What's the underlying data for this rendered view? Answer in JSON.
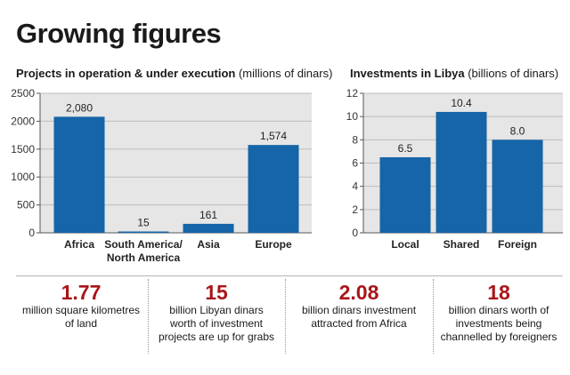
{
  "title": "Growing figures",
  "chart_data": [
    {
      "type": "bar",
      "title": "Projects in operation & under execution",
      "unit_note": "(millions of dinars)",
      "categories": [
        "Africa",
        "South America/\nNorth America",
        "Asia",
        "Europe"
      ],
      "values": [
        2080,
        15,
        161,
        1574
      ],
      "value_labels": [
        "2,080",
        "15",
        "161",
        "1,574"
      ],
      "yticks": [
        0,
        500,
        1000,
        1500,
        2000,
        2500
      ],
      "ylim": [
        0,
        2500
      ],
      "xlabel": "",
      "ylabel": "",
      "grid": true
    },
    {
      "type": "bar",
      "title": "Investments in Libya",
      "unit_note": "(billions of dinars)",
      "categories": [
        "Local",
        "Shared",
        "Foreign"
      ],
      "values": [
        6.5,
        10.4,
        8.0
      ],
      "value_labels": [
        "6.5",
        "10.4",
        "8.0"
      ],
      "yticks": [
        0,
        2,
        4,
        6,
        8,
        10,
        12
      ],
      "ylim": [
        0,
        12
      ],
      "xlabel": "",
      "ylabel": "",
      "grid": true
    }
  ],
  "stats": [
    {
      "number": "1.77",
      "text": "million square kilometres of land"
    },
    {
      "number": "15",
      "text": "billion Libyan dinars worth of investment projects are up for grabs"
    },
    {
      "number": "2.08",
      "text": "billion dinars investment attracted from Africa"
    },
    {
      "number": "18",
      "text": "billion dinars worth of investments being channelled by foreigners"
    }
  ],
  "colors": {
    "bar": "#1565a8",
    "plot_bg": "#e6e6e6",
    "grid": "#bdbdbd",
    "accent": "#a8161b"
  }
}
